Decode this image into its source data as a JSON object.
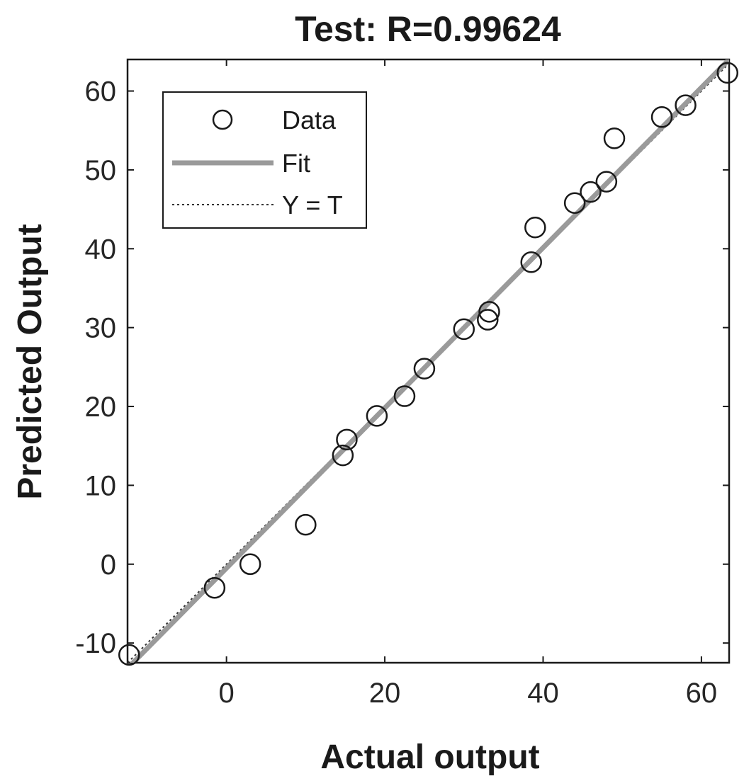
{
  "chart_data": {
    "type": "scatter",
    "title": "Test: R=0.99624",
    "xlabel": "Actual output",
    "ylabel": "Predicted Output",
    "xlim": [
      -12.5,
      63.5
    ],
    "ylim": [
      -12.5,
      64
    ],
    "xticks": [
      0,
      20,
      40,
      60
    ],
    "yticks": [
      -10,
      0,
      10,
      20,
      30,
      40,
      50,
      60
    ],
    "grid": false,
    "legend_position": "top-left",
    "legend": [
      "Data",
      "Fit",
      "Y = T"
    ],
    "series": [
      {
        "name": "Data",
        "x": [
          -12.3,
          -1.5,
          3,
          10,
          14.7,
          15.2,
          19,
          22.5,
          25,
          30,
          33,
          33.2,
          38.5,
          39,
          44,
          46,
          48,
          49,
          55,
          58,
          63.3
        ],
        "y": [
          -11.5,
          -3,
          0,
          5,
          13.8,
          15.8,
          18.8,
          21.3,
          24.8,
          29.8,
          31,
          32,
          38.3,
          42.7,
          45.8,
          47.2,
          48.5,
          54,
          56.7,
          58.2,
          62.3
        ]
      },
      {
        "name": "Fit",
        "x": [
          -12.5,
          63.5
        ],
        "y": [
          -13.2,
          64.0
        ]
      },
      {
        "name": "Y = T",
        "x": [
          -12.5,
          63.5
        ],
        "y": [
          -12.5,
          63.5
        ]
      }
    ],
    "colors": {
      "data": "#1a1a1a",
      "fit": "#9a9a9a",
      "identity": "#333333",
      "axes": "#1a1a1a"
    }
  }
}
